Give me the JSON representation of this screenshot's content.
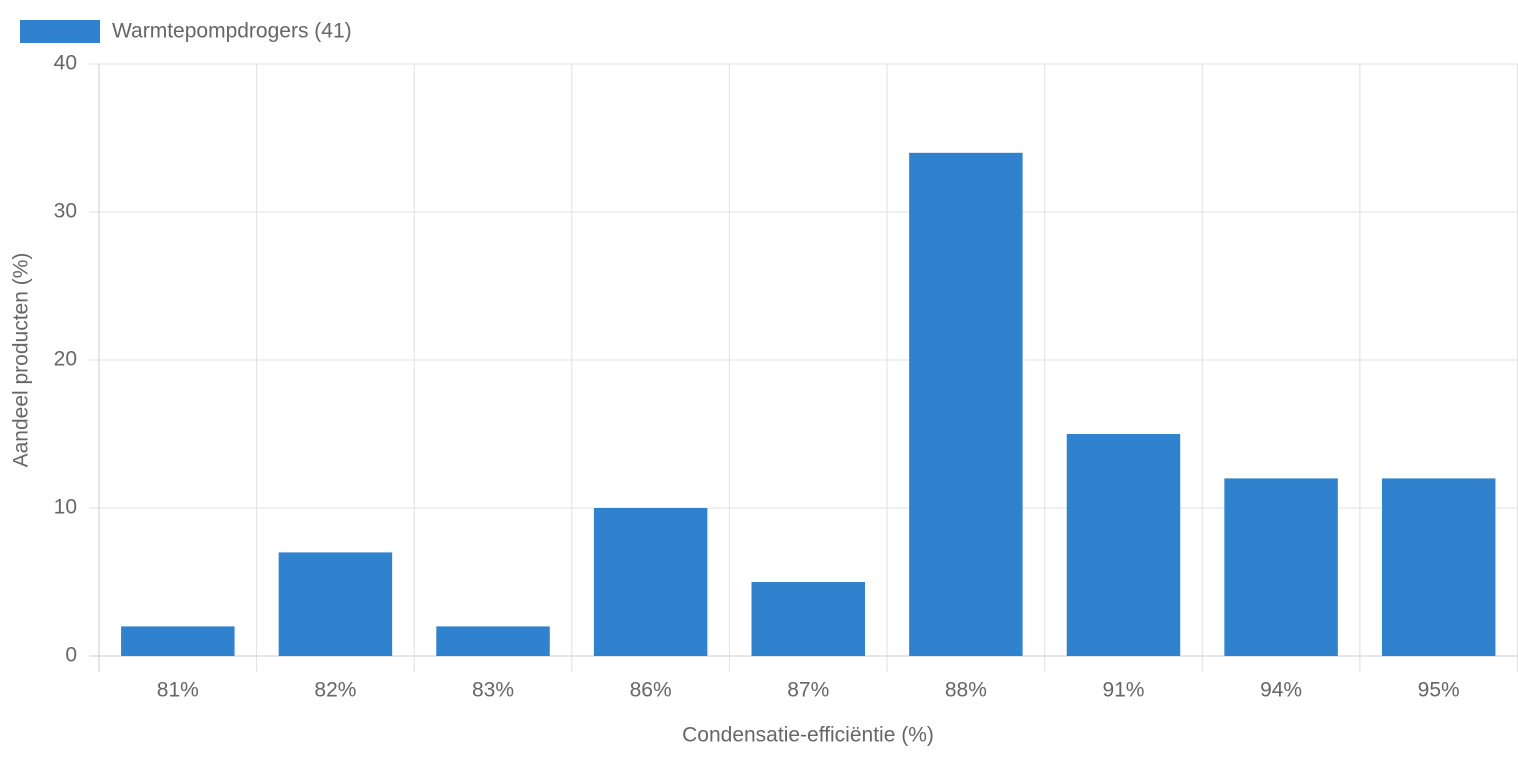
{
  "chart_data": {
    "type": "bar",
    "x_label": "Condensatie-efficiëntie (%)",
    "y_label": "Aandeel producten (%)",
    "categories": [
      "81%",
      "82%",
      "83%",
      "86%",
      "87%",
      "88%",
      "91%",
      "94%",
      "95%"
    ],
    "series": [
      {
        "name": "Warmtepompdrogers (41)",
        "color": "#3182ce",
        "values": [
          2,
          7,
          2,
          10,
          5,
          34,
          15,
          12,
          12
        ]
      }
    ],
    "ylim": [
      0,
      40
    ],
    "yticks": [
      0,
      10,
      20,
      30,
      40
    ],
    "grid": true,
    "legend": "top-left"
  }
}
